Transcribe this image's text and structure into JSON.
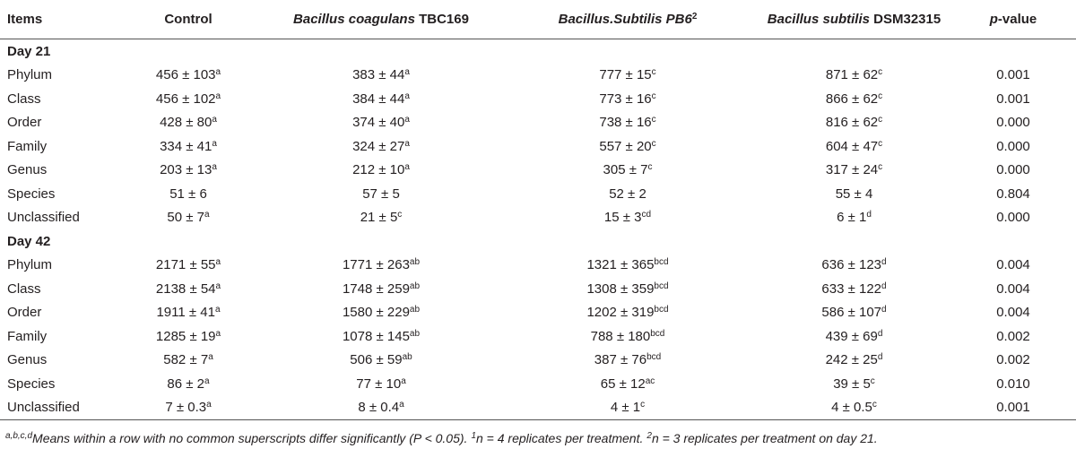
{
  "table": {
    "header": [
      {
        "text": "Items"
      },
      {
        "text": "Control"
      },
      {
        "italic": "Bacillus coagulans",
        "text": "TBC169"
      },
      {
        "italic": "Bacillus.Subtilis PB6",
        "sup": "2"
      },
      {
        "italic": "Bacillus subtilis",
        "text": "DSM32315"
      },
      {
        "italic": "p",
        "text": "-value"
      }
    ],
    "sections": [
      {
        "title": "Day 21",
        "rows": [
          {
            "item": "Phylum",
            "cells": [
              [
                "456 ± 103",
                "a"
              ],
              [
                "383 ± 44",
                "a"
              ],
              [
                "777 ± 15",
                "c"
              ],
              [
                "871 ± 62",
                "c"
              ]
            ],
            "p": "0.001"
          },
          {
            "item": "Class",
            "cells": [
              [
                "456 ± 102",
                "a"
              ],
              [
                "384 ± 44",
                "a"
              ],
              [
                "773 ± 16",
                "c"
              ],
              [
                "866 ± 62",
                "c"
              ]
            ],
            "p": "0.001"
          },
          {
            "item": "Order",
            "cells": [
              [
                "428 ± 80",
                "a"
              ],
              [
                "374 ± 40",
                "a"
              ],
              [
                "738 ± 16",
                "c"
              ],
              [
                "816 ± 62",
                "c"
              ]
            ],
            "p": "0.000"
          },
          {
            "item": "Family",
            "cells": [
              [
                "334 ± 41",
                "a"
              ],
              [
                "324 ± 27",
                "a"
              ],
              [
                "557 ± 20",
                "c"
              ],
              [
                "604 ± 47",
                "c"
              ]
            ],
            "p": "0.000"
          },
          {
            "item": "Genus",
            "cells": [
              [
                "203 ± 13",
                "a"
              ],
              [
                "212 ± 10",
                "a"
              ],
              [
                "305 ± 7",
                "c"
              ],
              [
                "317 ± 24",
                "c"
              ]
            ],
            "p": "0.000"
          },
          {
            "item": "Species",
            "cells": [
              [
                "51 ± 6"
              ],
              [
                "57 ± 5"
              ],
              [
                "52 ± 2"
              ],
              [
                "55 ± 4"
              ]
            ],
            "p": "0.804"
          },
          {
            "item": "Unclassified",
            "cells": [
              [
                "50 ± 7",
                "a"
              ],
              [
                "21 ± 5",
                "c"
              ],
              [
                "15 ± 3",
                "cd"
              ],
              [
                "6 ± 1",
                "d"
              ]
            ],
            "p": "0.000"
          }
        ]
      },
      {
        "title": "Day 42",
        "rows": [
          {
            "item": "Phylum",
            "cells": [
              [
                "2171 ± 55",
                "a"
              ],
              [
                "1771 ± 263",
                "ab"
              ],
              [
                "1321 ± 365",
                "bcd"
              ],
              [
                "636 ± 123",
                "d"
              ]
            ],
            "p": "0.004"
          },
          {
            "item": "Class",
            "cells": [
              [
                "2138 ± 54",
                "a"
              ],
              [
                "1748 ± 259",
                "ab"
              ],
              [
                "1308 ± 359",
                "bcd"
              ],
              [
                "633 ± 122",
                "d"
              ]
            ],
            "p": "0.004"
          },
          {
            "item": "Order",
            "cells": [
              [
                "1911 ± 41",
                "a"
              ],
              [
                "1580 ± 229",
                "ab"
              ],
              [
                "1202 ± 319",
                "bcd"
              ],
              [
                "586 ± 107",
                "d"
              ]
            ],
            "p": "0.004"
          },
          {
            "item": "Family",
            "cells": [
              [
                "1285 ± 19",
                "a"
              ],
              [
                "1078 ± 145",
                "ab"
              ],
              [
                "788 ± 180",
                "bcd"
              ],
              [
                "439 ± 69",
                "d"
              ]
            ],
            "p": "0.002"
          },
          {
            "item": "Genus",
            "cells": [
              [
                "582 ± 7",
                "a"
              ],
              [
                "506 ± 59",
                "ab"
              ],
              [
                "387 ± 76",
                "bcd"
              ],
              [
                "242 ± 25",
                "d"
              ]
            ],
            "p": "0.002"
          },
          {
            "item": "Species",
            "cells": [
              [
                "86 ± 2",
                "a"
              ],
              [
                "77 ± 10",
                "a"
              ],
              [
                "65 ± 12",
                "ac"
              ],
              [
                "39 ± 5",
                "c"
              ]
            ],
            "p": "0.010"
          },
          {
            "item": "Unclassified",
            "cells": [
              [
                "7 ± 0.3",
                "a"
              ],
              [
                "8 ± 0.4",
                "a"
              ],
              [
                "4 ± 1",
                "c"
              ],
              [
                "4 ± 0.5",
                "c"
              ]
            ],
            "p": "0.001"
          }
        ]
      }
    ],
    "footnote": [
      [
        "a,b,c,d",
        "Means within a row with no common superscripts differ significantly (P < 0.05)."
      ],
      [
        "1",
        "n = 4 replicates per treatment."
      ],
      [
        "2",
        "n = 3 replicates per treatment on day 21."
      ]
    ]
  }
}
